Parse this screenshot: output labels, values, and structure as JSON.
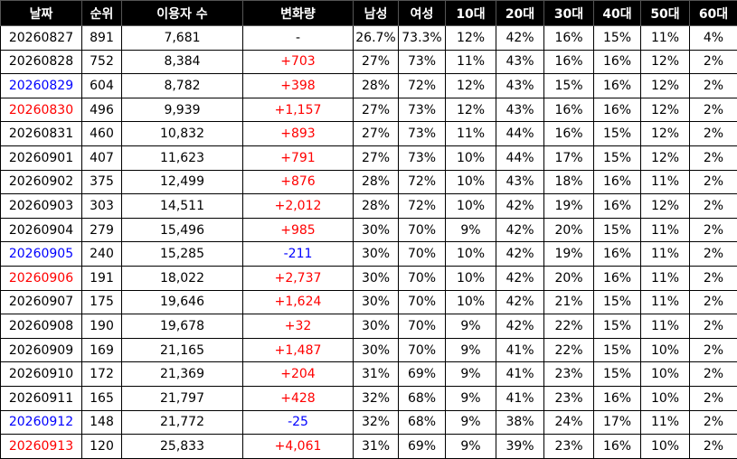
{
  "table": {
    "header": [
      "날짜",
      "순위",
      "이용자 수",
      "변화량",
      "남성",
      "여성",
      "10대",
      "20대",
      "30대",
      "40대",
      "50대",
      "60대"
    ],
    "colors": {
      "positive": "#ff0000",
      "negative": "#0000ff"
    },
    "rows": [
      {
        "cells": [
          "20260827",
          "891",
          "7,681",
          "-",
          "26.7%",
          "73.3%",
          "12%",
          "42%",
          "16%",
          "15%",
          "11%",
          "4%"
        ]
      },
      {
        "cells": [
          "20260828",
          "752",
          "8,384",
          "+703",
          "27%",
          "73%",
          "11%",
          "43%",
          "16%",
          "16%",
          "12%",
          "2%"
        ]
      },
      {
        "cells": [
          "20260829",
          "604",
          "8,782",
          "+398",
          "28%",
          "72%",
          "12%",
          "43%",
          "15%",
          "16%",
          "12%",
          "2%"
        ],
        "date_color": "#0000ff"
      },
      {
        "cells": [
          "20260830",
          "496",
          "9,939",
          "+1,157",
          "27%",
          "73%",
          "12%",
          "43%",
          "16%",
          "16%",
          "12%",
          "2%"
        ],
        "date_color": "#ff0000"
      },
      {
        "cells": [
          "20260831",
          "460",
          "10,832",
          "+893",
          "27%",
          "73%",
          "11%",
          "44%",
          "16%",
          "15%",
          "12%",
          "2%"
        ]
      },
      {
        "cells": [
          "20260901",
          "407",
          "11,623",
          "+791",
          "27%",
          "73%",
          "10%",
          "44%",
          "17%",
          "15%",
          "12%",
          "2%"
        ]
      },
      {
        "cells": [
          "20260902",
          "375",
          "12,499",
          "+876",
          "28%",
          "72%",
          "10%",
          "43%",
          "18%",
          "16%",
          "11%",
          "2%"
        ]
      },
      {
        "cells": [
          "20260903",
          "303",
          "14,511",
          "+2,012",
          "28%",
          "72%",
          "10%",
          "42%",
          "19%",
          "16%",
          "12%",
          "2%"
        ]
      },
      {
        "cells": [
          "20260904",
          "279",
          "15,496",
          "+985",
          "30%",
          "70%",
          "9%",
          "42%",
          "20%",
          "15%",
          "11%",
          "2%"
        ]
      },
      {
        "cells": [
          "20260905",
          "240",
          "15,285",
          "-211",
          "30%",
          "70%",
          "10%",
          "42%",
          "19%",
          "16%",
          "11%",
          "2%"
        ],
        "date_color": "#0000ff"
      },
      {
        "cells": [
          "20260906",
          "191",
          "18,022",
          "+2,737",
          "30%",
          "70%",
          "10%",
          "42%",
          "20%",
          "16%",
          "11%",
          "2%"
        ],
        "date_color": "#ff0000"
      },
      {
        "cells": [
          "20260907",
          "175",
          "19,646",
          "+1,624",
          "30%",
          "70%",
          "10%",
          "42%",
          "21%",
          "15%",
          "11%",
          "2%"
        ]
      },
      {
        "cells": [
          "20260908",
          "190",
          "19,678",
          "+32",
          "30%",
          "70%",
          "9%",
          "42%",
          "22%",
          "15%",
          "11%",
          "2%"
        ]
      },
      {
        "cells": [
          "20260909",
          "169",
          "21,165",
          "+1,487",
          "30%",
          "70%",
          "9%",
          "41%",
          "22%",
          "15%",
          "10%",
          "2%"
        ]
      },
      {
        "cells": [
          "20260910",
          "172",
          "21,369",
          "+204",
          "31%",
          "69%",
          "9%",
          "41%",
          "23%",
          "15%",
          "10%",
          "2%"
        ]
      },
      {
        "cells": [
          "20260911",
          "165",
          "21,797",
          "+428",
          "32%",
          "68%",
          "9%",
          "41%",
          "23%",
          "16%",
          "10%",
          "2%"
        ]
      },
      {
        "cells": [
          "20260912",
          "148",
          "21,772",
          "-25",
          "32%",
          "68%",
          "9%",
          "38%",
          "24%",
          "17%",
          "11%",
          "2%"
        ],
        "date_color": "#0000ff"
      },
      {
        "cells": [
          "20260913",
          "120",
          "25,833",
          "+4,061",
          "31%",
          "69%",
          "9%",
          "39%",
          "23%",
          "16%",
          "10%",
          "2%"
        ],
        "date_color": "#ff0000"
      }
    ]
  }
}
